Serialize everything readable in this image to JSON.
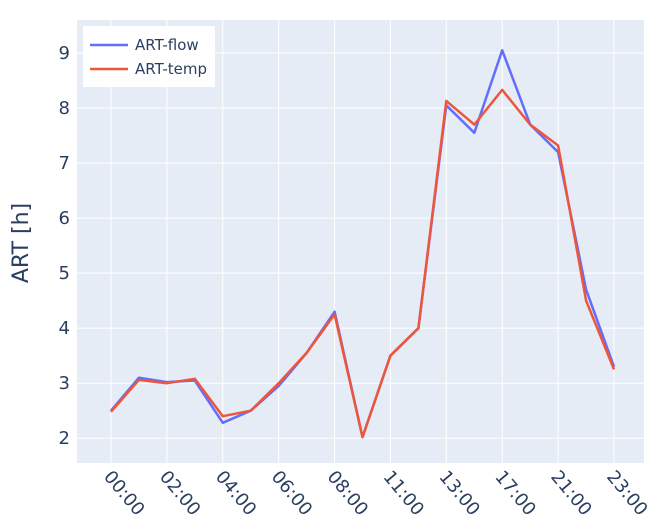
{
  "chart_data": {
    "type": "line",
    "title": "",
    "xlabel": "",
    "ylabel": "ART [h]",
    "x": [
      "00:00",
      "01:00",
      "02:00",
      "03:00",
      "04:00",
      "05:00",
      "06:00",
      "07:00",
      "08:00",
      "09:00",
      "11:00",
      "12:00",
      "13:00",
      "15:00",
      "17:00",
      "19:00",
      "21:00",
      "22:00",
      "23:00"
    ],
    "x_tick_labels": [
      "00:00",
      "02:00",
      "04:00",
      "06:00",
      "08:00",
      "11:00",
      "13:00",
      "17:00",
      "21:00",
      "23:00"
    ],
    "y_ticks": [
      2,
      3,
      4,
      5,
      6,
      7,
      8,
      9
    ],
    "ylim": [
      1.55,
      9.6
    ],
    "grid": true,
    "legend_position": "top-left",
    "series": [
      {
        "name": "ART-flow",
        "color": "#636efa",
        "values": [
          2.5,
          3.1,
          3.02,
          3.05,
          2.28,
          2.5,
          2.95,
          3.55,
          4.3,
          2.02,
          3.5,
          4.0,
          8.05,
          7.55,
          9.05,
          7.7,
          7.2,
          4.7,
          3.3
        ]
      },
      {
        "name": "ART-temp",
        "color": "#ef553b",
        "values": [
          2.48,
          3.06,
          3.0,
          3.08,
          2.4,
          2.5,
          3.0,
          3.55,
          4.25,
          2.02,
          3.5,
          4.0,
          8.13,
          7.7,
          8.33,
          7.7,
          7.32,
          4.5,
          3.25
        ]
      }
    ],
    "plot_bgcolor": "#e5ecf6",
    "grid_color": "#ffffff"
  }
}
